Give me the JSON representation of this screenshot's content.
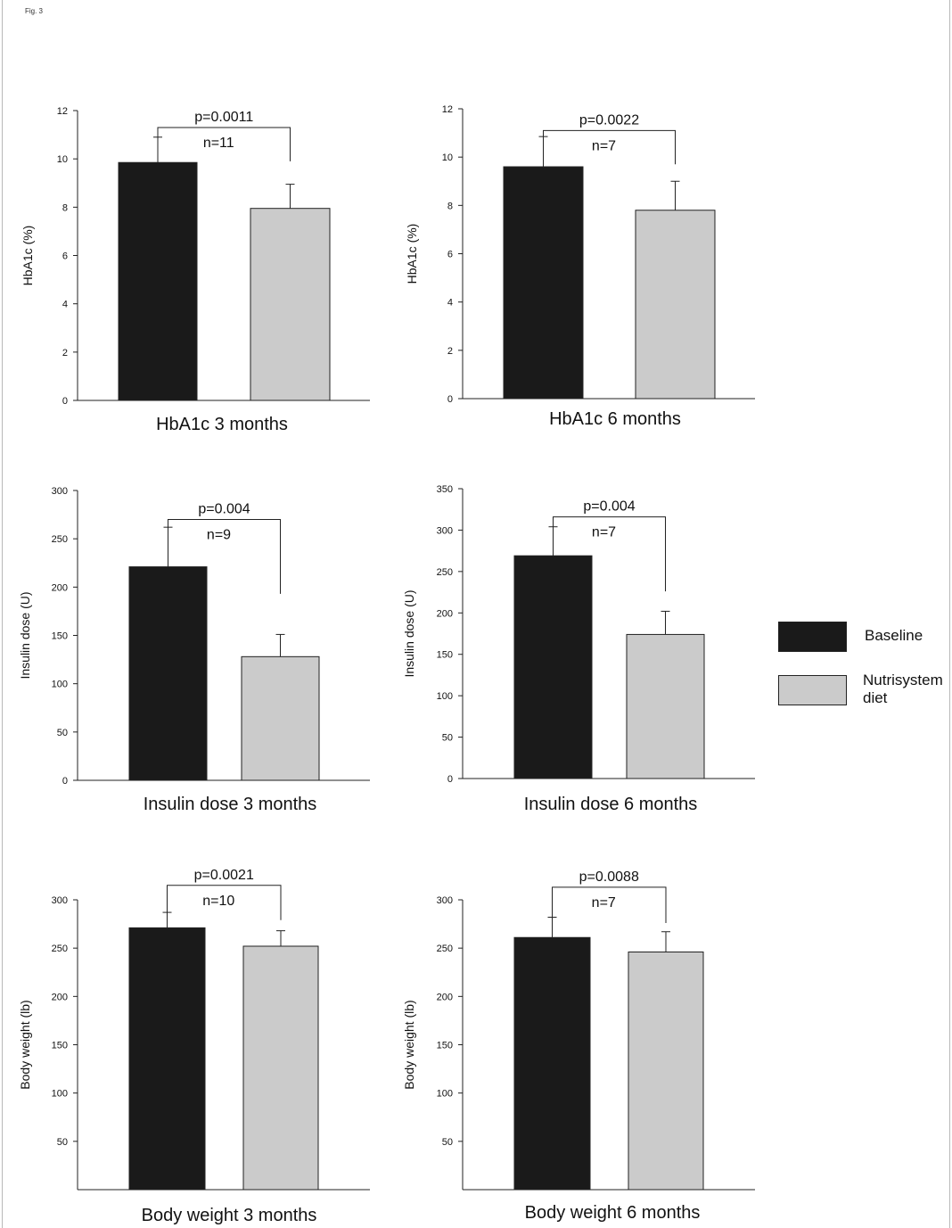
{
  "figure_label": "Fig. 3",
  "colors": {
    "baseline": "#1a1a1a",
    "diet": "#cbcbcb",
    "axis": "#222222"
  },
  "legend": {
    "items": [
      {
        "label": "Baseline",
        "color": "#1a1a1a"
      },
      {
        "label": "Nutrisystem diet",
        "color": "#cbcbcb"
      }
    ]
  },
  "chart_data": [
    {
      "type": "bar",
      "title": "HbA1c 3 months",
      "ylabel": "HbA1c (%)",
      "ylim": [
        0,
        12
      ],
      "yticks": [
        "0",
        "2",
        "4",
        "6",
        "8",
        "10",
        "12"
      ],
      "categories": [
        "Baseline",
        "Nutrisystem diet"
      ],
      "values": [
        9.85,
        7.95
      ],
      "errors": [
        1.05,
        1.0
      ],
      "annotation": {
        "p": "p=0.0011",
        "n": "n=11",
        "bracket_y": 11.3,
        "drop_to": 9.9
      }
    },
    {
      "type": "bar",
      "title": "HbA1c 6 months",
      "ylabel": "HbA1c (%)",
      "ylim": [
        0,
        12
      ],
      "yticks": [
        "0",
        "2",
        "4",
        "6",
        "8",
        "10",
        "12"
      ],
      "categories": [
        "Baseline",
        "Nutrisystem diet"
      ],
      "values": [
        9.6,
        7.8
      ],
      "errors": [
        1.25,
        1.2
      ],
      "annotation": {
        "p": "p=0.0022",
        "n": "n=7",
        "bracket_y": 11.1,
        "drop_to": 9.7
      }
    },
    {
      "type": "bar",
      "title": "Insulin dose 3 months",
      "ylabel": "Insulin dose (U)",
      "ylim": [
        0,
        300
      ],
      "yticks": [
        "0",
        "50",
        "100",
        "150",
        "200",
        "250",
        "300"
      ],
      "categories": [
        "Baseline",
        "Nutrisystem diet"
      ],
      "values": [
        221,
        128
      ],
      "errors": [
        41,
        23
      ],
      "annotation": {
        "p": "p=0.004",
        "n": "n=9",
        "bracket_y": 270,
        "drop_to": 193
      }
    },
    {
      "type": "bar",
      "title": "Insulin dose 6 months",
      "ylabel": "Insulin dose (U)",
      "ylim": [
        0,
        350
      ],
      "yticks": [
        "0",
        "50",
        "100",
        "150",
        "200",
        "250",
        "300",
        "350"
      ],
      "categories": [
        "Baseline",
        "Nutrisystem diet"
      ],
      "values": [
        269,
        174
      ],
      "errors": [
        35,
        28
      ],
      "annotation": {
        "p": "p=0.004",
        "n": "n=7",
        "bracket_y": 316,
        "drop_to": 226
      }
    },
    {
      "type": "bar",
      "title": "Body weight 3 months",
      "ylabel": "Body weight (lb)",
      "ylim": [
        0,
        300
      ],
      "yticks": [
        "50",
        "100",
        "150",
        "200",
        "250",
        "300"
      ],
      "categories": [
        "Baseline",
        "Nutrisystem diet"
      ],
      "values": [
        271,
        252
      ],
      "errors": [
        16,
        16
      ],
      "annotation": {
        "p": "p=0.0021",
        "n": "n=10",
        "bracket_y": 315,
        "drop_to": 279
      }
    },
    {
      "type": "bar",
      "title": "Body weight 6 months",
      "ylabel": "Body weight (lb)",
      "ylim": [
        0,
        300
      ],
      "yticks": [
        "50",
        "100",
        "150",
        "200",
        "250",
        "300"
      ],
      "categories": [
        "Baseline",
        "Nutrisystem diet"
      ],
      "values": [
        261,
        246
      ],
      "errors": [
        21,
        21
      ],
      "annotation": {
        "p": "p=0.0088",
        "n": "n=7",
        "bracket_y": 313,
        "drop_to": 276
      }
    }
  ]
}
